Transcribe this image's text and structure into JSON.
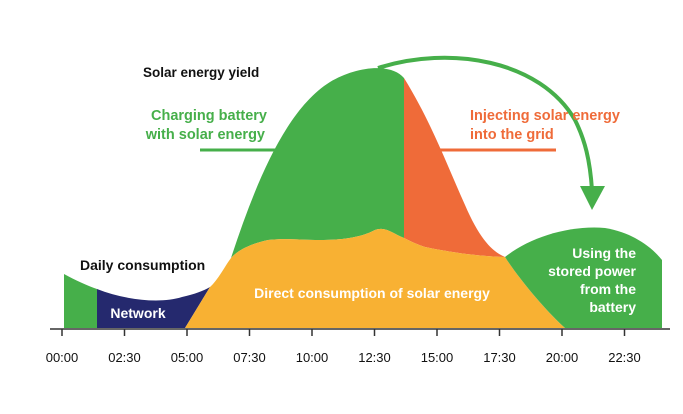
{
  "chart_data": {
    "type": "area",
    "title": "",
    "xlabel": "",
    "ylabel": "",
    "x_unit": "hours",
    "x_ticks": [
      "00:00",
      "02:30",
      "05:00",
      "07:30",
      "10:00",
      "12:30",
      "15:00",
      "17:30",
      "20:00",
      "22:30"
    ],
    "tick_positions_hours": [
      0,
      2.5,
      5,
      7.5,
      10,
      12.5,
      15,
      17.5,
      20,
      22.5
    ],
    "x_range": [
      0,
      24
    ],
    "y_range": [
      0,
      100
    ],
    "series": [
      {
        "name": "Daily consumption",
        "x": [
          0,
          2,
          4,
          5,
          6,
          7,
          8,
          9,
          10,
          11,
          12,
          12.5,
          13,
          14,
          15,
          16,
          17,
          18,
          19,
          20,
          21,
          22,
          23,
          24
        ],
        "values": [
          22,
          13,
          9,
          12,
          24,
          35,
          34,
          33,
          35,
          37,
          36,
          40,
          40,
          37,
          33,
          31,
          33,
          36,
          38,
          41,
          43,
          40,
          37,
          30
        ]
      },
      {
        "name": "Solar energy yield",
        "x": [
          6,
          7,
          8,
          9,
          10,
          11,
          12,
          12.5,
          13,
          14,
          15,
          16,
          17,
          18,
          19
        ],
        "values": [
          0,
          25,
          58,
          80,
          92,
          99,
          101,
          101,
          99,
          92,
          78,
          58,
          38,
          20,
          0
        ]
      }
    ],
    "regions": [
      {
        "name": "network",
        "label": "Network",
        "color": "#25296e",
        "x_range": [
          1.4,
          5.6
        ]
      },
      {
        "name": "battery-early",
        "label": "",
        "color": "#46af4a",
        "x_range": [
          0,
          1.4
        ]
      },
      {
        "name": "charging",
        "label": "Charging battery with solar energy",
        "color": "#46af4a",
        "x_range": [
          6.5,
          14.1
        ]
      },
      {
        "name": "injecting",
        "label": "Injecting solar energy into the grid",
        "color": "#ef6b39",
        "x_range": [
          14.1,
          18.3
        ]
      },
      {
        "name": "direct",
        "label": "Direct consumption of solar energy",
        "color": "#f8b133",
        "x_range": [
          5.6,
          19.7
        ]
      },
      {
        "name": "stored",
        "label": "Using the stored power from the battery",
        "color": "#46af4a",
        "x_range": [
          18.3,
          24
        ]
      }
    ],
    "annotations": {
      "solar_yield": "Solar energy yield",
      "daily_consumption": "Daily consumption",
      "charging_line1": "Charging battery",
      "charging_line2": "with solar energy",
      "injecting_line1": "Injecting solar energy",
      "injecting_line2": "into the grid",
      "direct": "Direct consumption of solar energy",
      "network": "Network",
      "stored_line1": "Using the",
      "stored_line2": "stored power",
      "stored_line3": "from the",
      "stored_line4": "battery"
    },
    "colors": {
      "green": "#46af4a",
      "orange": "#ef6b39",
      "yellow": "#f8b133",
      "navy": "#25296e",
      "text": "#111111"
    }
  }
}
